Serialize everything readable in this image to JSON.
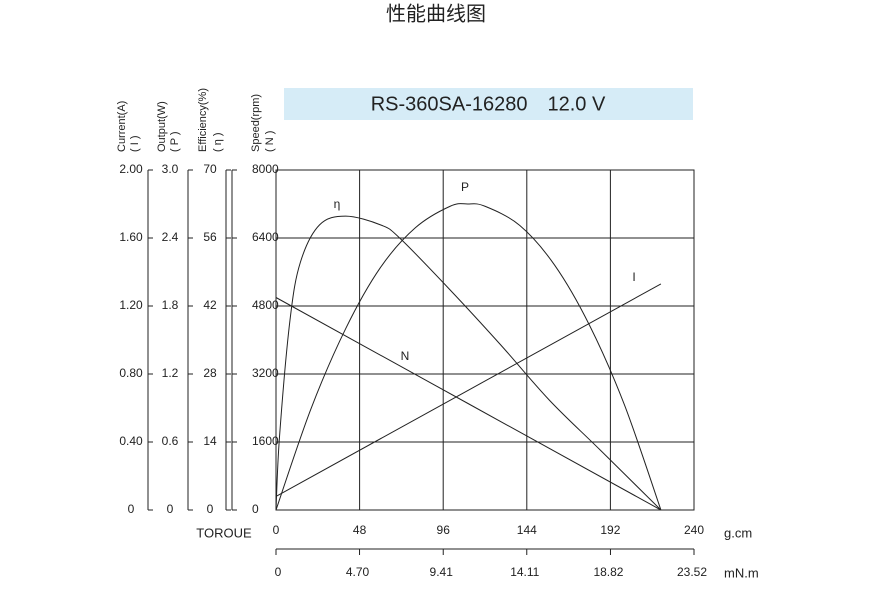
{
  "chart_data": {
    "type": "line",
    "title": "性能曲线图",
    "subtitle": "RS-360SA-16280　12.0 V",
    "y_axes": [
      {
        "label": "Current(A)",
        "sublabel": "( I )",
        "ylim": [
          0,
          2
        ],
        "yticks": [
          0,
          {
            "value": 0.4,
            "label": "0.40"
          },
          {
            "value": 0.8,
            "label": "0.80"
          },
          {
            "value": 1.2,
            "label": "1.20"
          },
          {
            "value": 1.6,
            "label": "1.60"
          },
          {
            "value": 2,
            "label": "2.00"
          }
        ]
      },
      {
        "label": "Output(W)",
        "sublabel": "( P )",
        "ylim": [
          0,
          3
        ],
        "yticks": [
          0,
          0.6,
          1.2,
          1.8,
          2.4,
          {
            "value": 3,
            "label": "3.0"
          }
        ]
      },
      {
        "label": "Efficiency(%)",
        "sublabel": "( η )",
        "ylim": [
          0,
          70
        ],
        "yticks": [
          0,
          14,
          28,
          42,
          56,
          70
        ]
      },
      {
        "label": "Speed(rpm)",
        "sublabel": "( N )",
        "ylim": [
          0,
          8000
        ],
        "yticks": [
          0,
          1600,
          3200,
          4800,
          6400,
          8000
        ]
      }
    ],
    "xlabel": "TOROUE",
    "xunit": "g.cm",
    "xlim": [
      0,
      240
    ],
    "xticks": [
      0,
      48,
      96,
      144,
      192,
      240
    ],
    "x2unit": "mN.m",
    "x2lim": [
      0,
      23.52
    ],
    "x2ticks": [
      0,
      {
        "value": 4.7,
        "label": "4.70"
      },
      9.41,
      14.11,
      18.82,
      23.52
    ],
    "grid": true,
    "series": [
      {
        "name": "N",
        "color": "#222222",
        "axis": 3,
        "x": [
          0,
          221
        ],
        "values": [
          5000,
          0
        ]
      },
      {
        "name": "I",
        "color": "#222222",
        "axis": 0,
        "x": [
          0,
          221
        ],
        "values": [
          0.08,
          1.33
        ]
      },
      {
        "name": "P",
        "color": "#222222",
        "axis": 1,
        "x": [
          0,
          20,
          40,
          60,
          80,
          100,
          110,
          120,
          140,
          160,
          180,
          200,
          221
        ],
        "values": [
          0,
          0.89,
          1.6,
          2.14,
          2.49,
          2.68,
          2.7,
          2.68,
          2.51,
          2.16,
          1.63,
          0.93,
          0
        ]
      },
      {
        "name": "η",
        "color": "#222222",
        "axis": 2,
        "x": [
          0,
          2,
          8,
          14,
          25,
          40,
          60,
          71,
          100,
          129,
          157,
          186,
          221
        ],
        "values": [
          0,
          15,
          39,
          51,
          58.7,
          60.5,
          58.7,
          56,
          45.3,
          34,
          22.6,
          12.4,
          0
        ]
      }
    ]
  }
}
